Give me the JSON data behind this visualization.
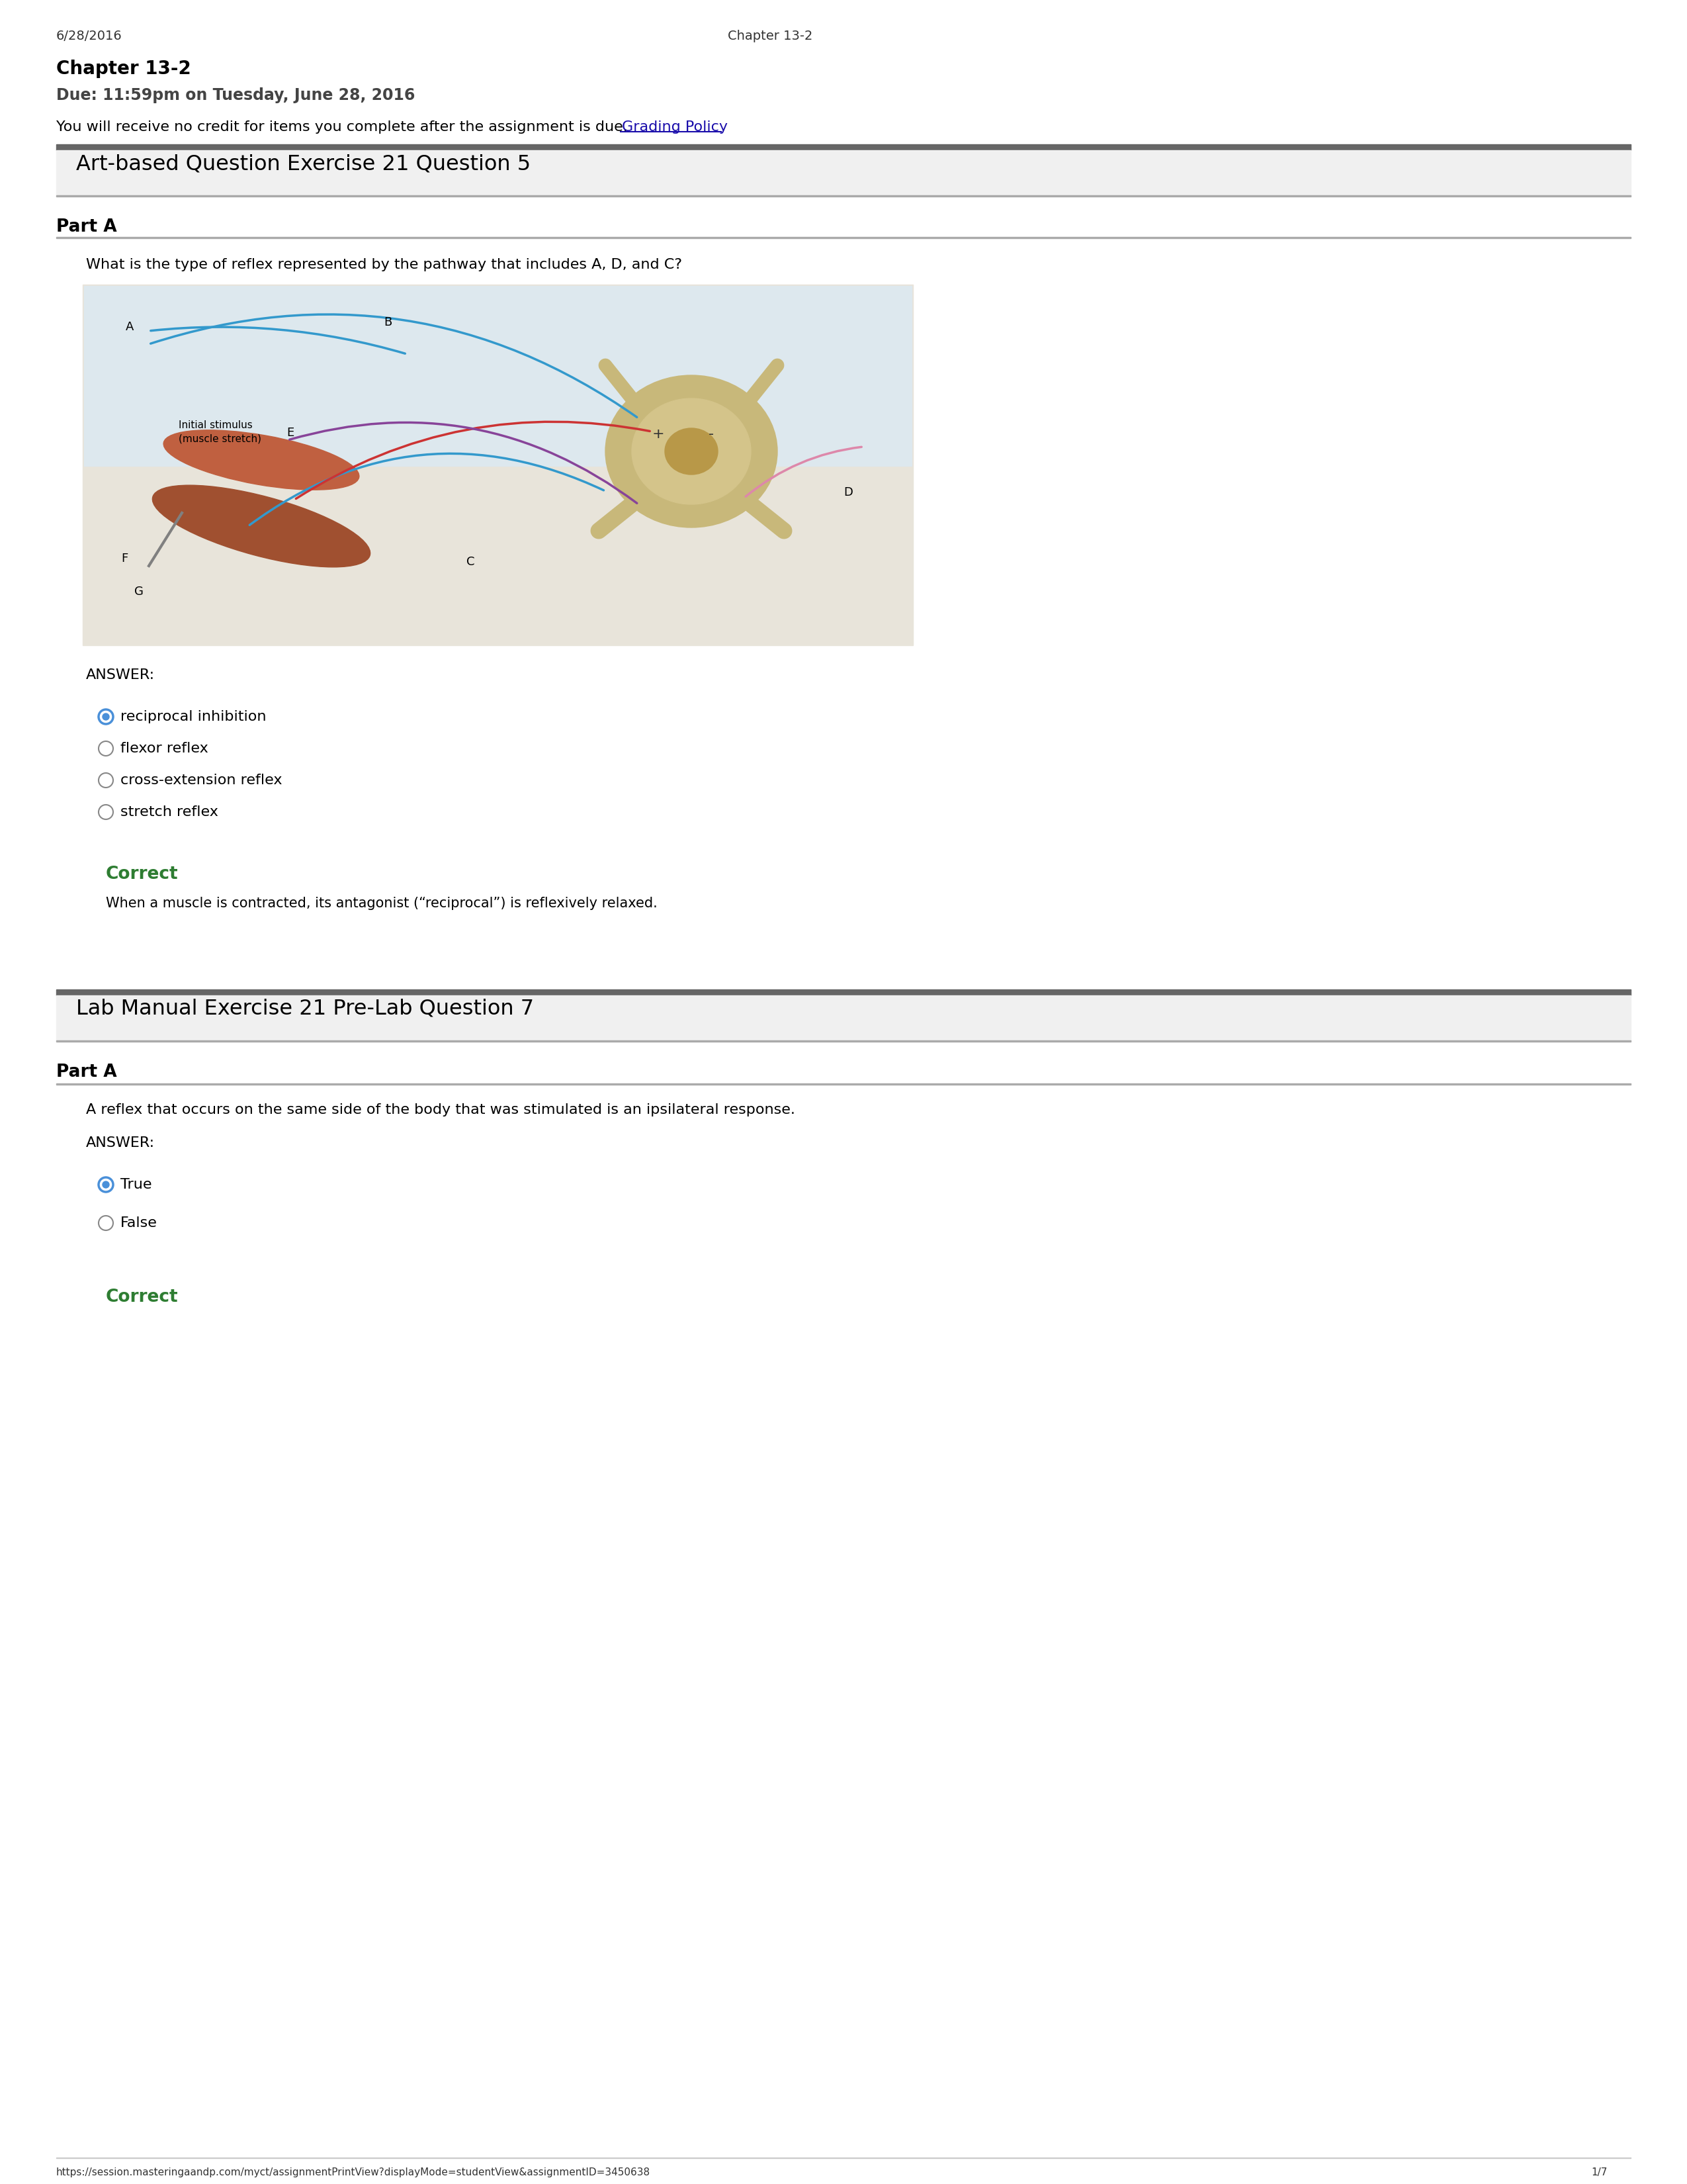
{
  "bg_color": "#ffffff",
  "header_date": "6/28/2016",
  "header_center": "Chapter 13-2",
  "title_bold": "Chapter 13-2",
  "due_line": "Due: 11:59pm on Tuesday, June 28, 2016",
  "credit_line": "You will receive no credit for items you complete after the assignment is due. ",
  "credit_link": "Grading Policy",
  "section1_title": "Art-based Question Exercise 21 Question 5",
  "partA_label": "Part A",
  "question1": "What is the type of reflex represented by the pathway that includes A, D, and C?",
  "answer_label": "ANSWER:",
  "choices1": [
    "reciprocal inhibition",
    "flexor reflex",
    "cross-extension reflex",
    "stretch reflex"
  ],
  "selected1": 0,
  "correct1_title": "Correct",
  "correct1_body": "When a muscle is contracted, its antagonist (“reciprocal”) is reflexively relaxed.",
  "section2_title": "Lab Manual Exercise 21 Pre-Lab Question 7",
  "partA2_label": "Part A",
  "question2": "A reflex that occurs on the same side of the body that was stimulated is an ipsilateral response.",
  "answer2_label": "ANSWER:",
  "choices2": [
    "True",
    "False"
  ],
  "selected2": 0,
  "correct2_title": "Correct",
  "footer_url": "https://session.masteringaandp.com/myct/assignmentPrintView?displayMode=studentView&assignmentID=3450638",
  "footer_page": "1/7",
  "dark_bar_color": "#666666",
  "light_bar_color": "#aaaaaa",
  "green_color": "#2e7d32",
  "green_border": "#2e7d32",
  "blue_link": "#1a0dab",
  "text_color": "#000000",
  "gray_text": "#555555",
  "section_bg": "#f0f0f0",
  "img_bg": "#e8e4da",
  "img_border": "#bbbbbb"
}
